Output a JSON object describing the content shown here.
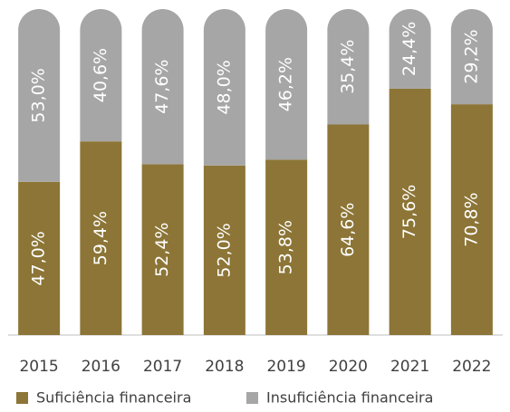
{
  "chart_data": {
    "type": "stacked_bar",
    "categories": [
      "2015",
      "2016",
      "2017",
      "2018",
      "2019",
      "2020",
      "2021",
      "2022"
    ],
    "series": [
      {
        "name": "Suficiência financeira",
        "color": "#8c7536",
        "values": [
          47.0,
          59.4,
          52.4,
          52.0,
          53.8,
          64.6,
          75.6,
          70.8
        ],
        "value_labels": [
          "47,0%",
          "59,4%",
          "52,4%",
          "52,0%",
          "53,8%",
          "64,6%",
          "75,6%",
          "70,8%"
        ]
      },
      {
        "name": "Insuficiência financeira",
        "color": "#a6a6a6",
        "values": [
          53.0,
          40.6,
          47.6,
          48.0,
          46.2,
          35.4,
          24.4,
          29.2
        ],
        "value_labels": [
          "53,0%",
          "40,6%",
          "47,6%",
          "48,0%",
          "46,2%",
          "35,4%",
          "24,4%",
          "29,2%"
        ]
      }
    ],
    "ylim": [
      0,
      100
    ]
  }
}
